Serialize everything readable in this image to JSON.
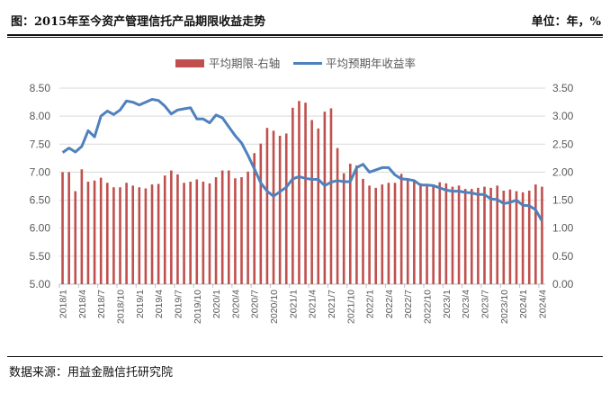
{
  "header": {
    "title": "图：2015年至今资产管理信托产品期限收益走势",
    "unit": "单位：年，%"
  },
  "footer": {
    "source": "数据来源：用益金融信托研究院"
  },
  "chart_data": {
    "type": "bar+line",
    "title": "2015年至今资产管理信托产品期限收益走势",
    "legend_position": "top-center",
    "grid": true,
    "x_tick_labels": [
      "2018/1",
      "2018/4",
      "2018/7",
      "2018/10",
      "2019/1",
      "2019/4",
      "2019/7",
      "2019/10",
      "2020/1",
      "2020/4",
      "2020/7",
      "2020/10",
      "2021/1",
      "2021/4",
      "2021/7",
      "2021/10",
      "2022/1",
      "2022/4",
      "2022/7",
      "2022/10",
      "2023/1",
      "2023/4",
      "2023/7",
      "2023/10",
      "2024/1",
      "2024/4"
    ],
    "left_axis": {
      "ylim": [
        5.0,
        8.5
      ],
      "ticks": [
        "5.00",
        "5.50",
        "6.00",
        "6.50",
        "7.00",
        "7.50",
        "8.00",
        "8.50"
      ]
    },
    "right_axis": {
      "ylim": [
        0.0,
        3.5
      ],
      "ticks": [
        "0.00",
        "0.50",
        "1.00",
        "1.50",
        "2.00",
        "2.50",
        "3.00",
        "3.50"
      ]
    },
    "series": [
      {
        "name": "平均期限-右轴",
        "type": "bar",
        "axis": "right",
        "color": "#C0504D",
        "values": [
          2.0,
          2.0,
          1.66,
          2.05,
          1.83,
          1.85,
          1.9,
          1.81,
          1.73,
          1.73,
          1.81,
          1.76,
          1.73,
          1.71,
          1.78,
          1.79,
          1.94,
          2.03,
          1.96,
          1.81,
          1.83,
          1.87,
          1.83,
          1.8,
          1.91,
          2.03,
          2.03,
          1.89,
          1.91,
          2.01,
          2.34,
          2.51,
          2.79,
          2.74,
          2.65,
          2.69,
          3.15,
          3.27,
          3.24,
          2.93,
          2.78,
          3.08,
          3.14,
          2.43,
          1.98,
          2.15,
          2.12,
          1.88,
          1.76,
          1.72,
          1.78,
          1.81,
          1.81,
          1.97,
          1.86,
          1.84,
          1.8,
          1.77,
          1.78,
          1.82,
          1.8,
          1.74,
          1.76,
          1.7,
          1.7,
          1.72,
          1.74,
          1.72,
          1.76,
          1.67,
          1.69,
          1.66,
          1.64,
          1.67,
          1.78,
          1.74
        ]
      },
      {
        "name": "平均预期年收益率",
        "type": "line",
        "axis": "left",
        "color": "#4F81BD",
        "values": [
          7.35,
          7.43,
          7.36,
          7.46,
          7.74,
          7.63,
          8.0,
          8.09,
          8.03,
          8.11,
          8.27,
          8.25,
          8.2,
          8.25,
          8.3,
          8.28,
          8.18,
          8.04,
          8.11,
          8.13,
          8.15,
          7.95,
          7.95,
          7.88,
          8.02,
          7.97,
          7.81,
          7.65,
          7.52,
          7.3,
          7.06,
          6.81,
          6.66,
          6.57,
          6.65,
          6.73,
          6.88,
          6.92,
          6.89,
          6.87,
          6.87,
          6.76,
          6.82,
          6.85,
          6.83,
          6.83,
          7.08,
          7.14,
          7.0,
          7.04,
          7.08,
          7.08,
          6.95,
          6.88,
          6.87,
          6.85,
          6.77,
          6.77,
          6.76,
          6.72,
          6.68,
          6.66,
          6.66,
          6.64,
          6.63,
          6.6,
          6.6,
          6.52,
          6.51,
          6.44,
          6.46,
          6.5,
          6.41,
          6.4,
          6.33,
          6.13
        ]
      }
    ]
  }
}
